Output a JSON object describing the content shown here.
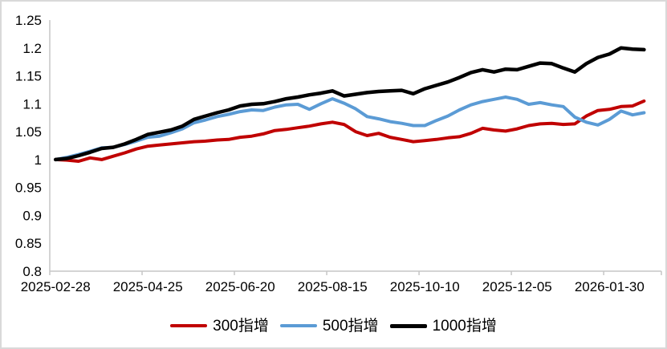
{
  "chart_data": {
    "type": "line",
    "title": "",
    "xlabel": "",
    "ylabel": "",
    "n_points": 52,
    "x_tick_every": 8,
    "x_tick_labels": [
      "2025-02-28",
      "2025-04-25",
      "2025-06-20",
      "2025-08-15",
      "2025-10-10",
      "2025-12-05",
      "2026-01-30"
    ],
    "y_tick_labels": [
      "1.25",
      "1.2",
      "1.15",
      "1.1",
      "1.05",
      "1",
      "0.95",
      "0.9",
      "0.85",
      "0.8"
    ],
    "y_tick_values": [
      1.25,
      1.2,
      1.15,
      1.1,
      1.05,
      1.0,
      0.95,
      0.9,
      0.85,
      0.8
    ],
    "ylim": [
      0.8,
      1.25
    ],
    "grid": false,
    "legend_position": "bottom",
    "axis_color": "#c6c6c6",
    "text_color": "#000000",
    "series": [
      {
        "name": "300指增",
        "color": "#c00000",
        "line_width": 4,
        "values": [
          1.0,
          0.999,
          0.997,
          1.003,
          1.0,
          1.006,
          1.012,
          1.019,
          1.024,
          1.026,
          1.028,
          1.03,
          1.032,
          1.033,
          1.035,
          1.036,
          1.04,
          1.042,
          1.046,
          1.052,
          1.054,
          1.057,
          1.06,
          1.064,
          1.067,
          1.063,
          1.05,
          1.043,
          1.047,
          1.04,
          1.036,
          1.032,
          1.034,
          1.036,
          1.039,
          1.041,
          1.047,
          1.056,
          1.053,
          1.051,
          1.055,
          1.061,
          1.064,
          1.065,
          1.063,
          1.064,
          1.078,
          1.088,
          1.09,
          1.095,
          1.096,
          1.105
        ]
      },
      {
        "name": "500指增",
        "color": "#5b9bd5",
        "line_width": 4,
        "values": [
          1.0,
          1.004,
          1.009,
          1.015,
          1.021,
          1.022,
          1.027,
          1.033,
          1.04,
          1.042,
          1.048,
          1.055,
          1.066,
          1.071,
          1.077,
          1.081,
          1.086,
          1.089,
          1.088,
          1.094,
          1.098,
          1.099,
          1.09,
          1.1,
          1.109,
          1.101,
          1.091,
          1.077,
          1.073,
          1.068,
          1.065,
          1.061,
          1.061,
          1.07,
          1.078,
          1.089,
          1.098,
          1.104,
          1.108,
          1.112,
          1.108,
          1.099,
          1.102,
          1.098,
          1.095,
          1.076,
          1.067,
          1.062,
          1.072,
          1.087,
          1.08,
          1.084
        ]
      },
      {
        "name": "1000指增",
        "color": "#000000",
        "line_width": 4.5,
        "values": [
          1.0,
          1.002,
          1.007,
          1.013,
          1.02,
          1.022,
          1.028,
          1.036,
          1.045,
          1.049,
          1.053,
          1.06,
          1.072,
          1.078,
          1.084,
          1.089,
          1.096,
          1.099,
          1.1,
          1.104,
          1.109,
          1.112,
          1.116,
          1.119,
          1.123,
          1.114,
          1.117,
          1.12,
          1.122,
          1.123,
          1.124,
          1.118,
          1.127,
          1.133,
          1.139,
          1.147,
          1.156,
          1.161,
          1.157,
          1.162,
          1.161,
          1.167,
          1.173,
          1.172,
          1.164,
          1.157,
          1.172,
          1.183,
          1.189,
          1.2,
          1.198,
          1.197
        ]
      }
    ]
  }
}
